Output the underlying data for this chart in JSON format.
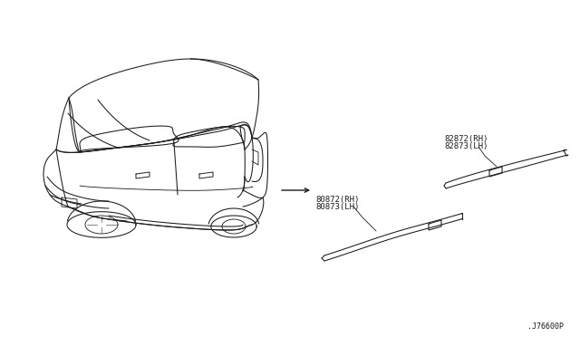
{
  "background_color": "#ffffff",
  "line_color": "#1a1a1a",
  "text_color": "#1a1a1a",
  "diagram_number": ".J76600P",
  "label1_line1": "82872(RH)",
  "label1_line2": "82873(LH)",
  "label2_line1": "80872(RH)",
  "label2_line2": "80873(LH)",
  "font_size_labels": 6.5,
  "font_size_diagram_num": 6.0
}
